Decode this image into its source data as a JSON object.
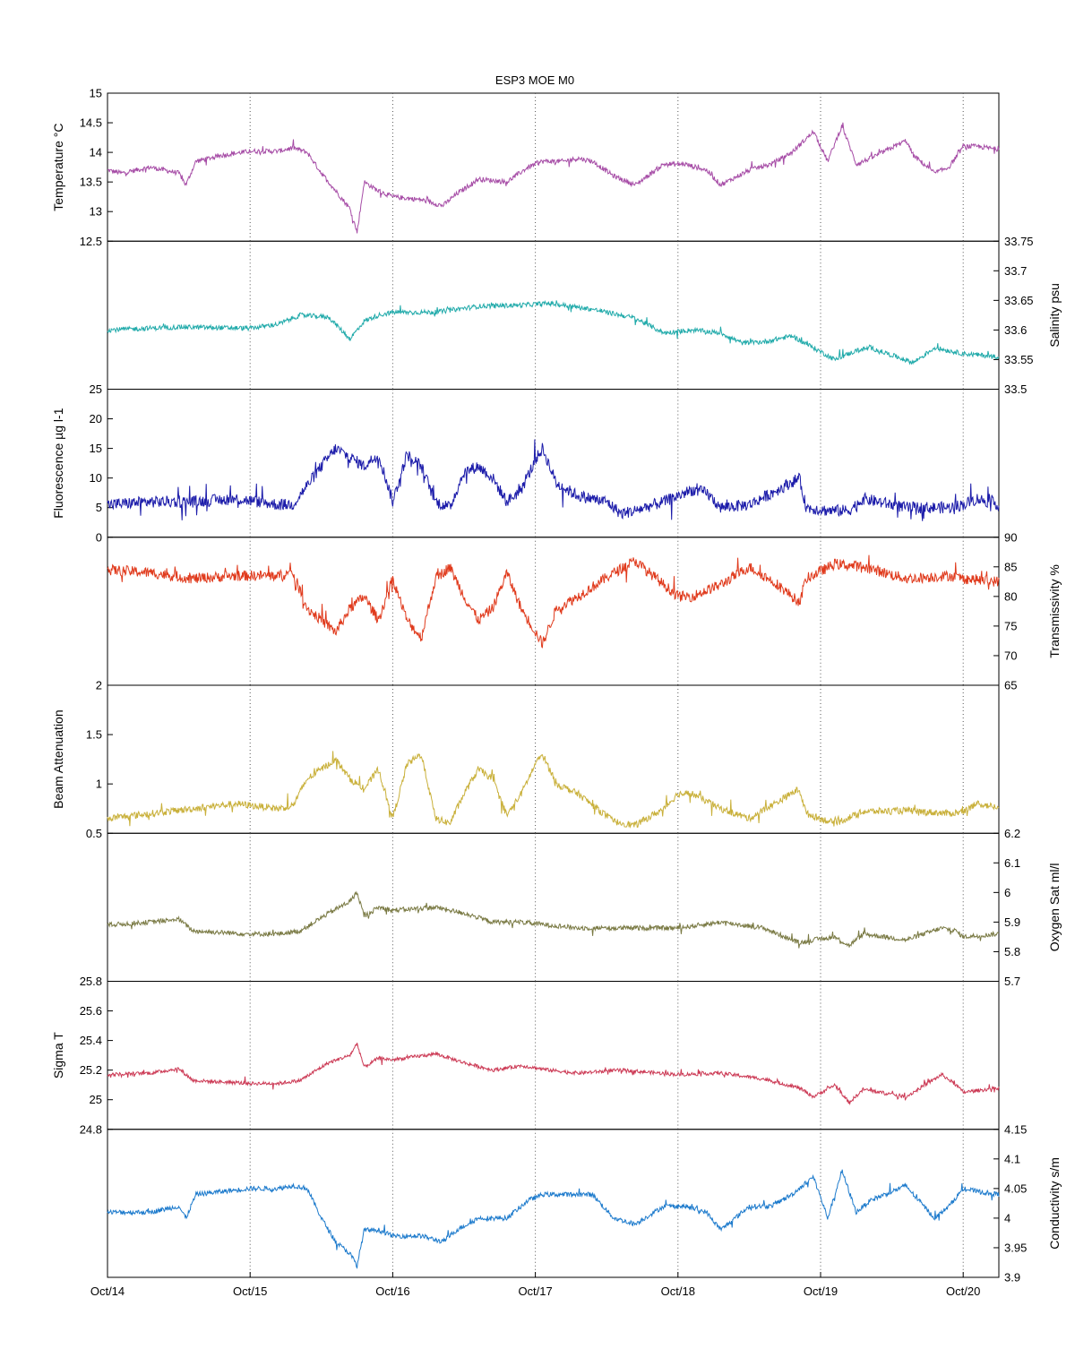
{
  "chart_data": {
    "type": "line",
    "title": "ESP3 MOE   M0",
    "x_ticks": [
      "Oct/14",
      "Oct/15",
      "Oct/16",
      "Oct/17",
      "Oct/18",
      "Oct/19",
      "Oct/20"
    ],
    "x_range_days": [
      0,
      6.25
    ],
    "x_grid": "vertical dotted at each day",
    "panels": [
      {
        "name": "temperature",
        "ylabel": "Temperature °C",
        "axis_side": "left",
        "color": "#a64ca6",
        "ylim": [
          12.5,
          15
        ],
        "yticks": [
          12.5,
          13,
          13.5,
          14,
          14.5,
          15
        ],
        "ytick_labels": [
          "12.5",
          "13",
          "13.5",
          "14",
          "14.5",
          "15"
        ],
        "noise": 0.04,
        "x": [
          0,
          0.1,
          0.3,
          0.5,
          0.55,
          0.62,
          0.8,
          1.0,
          1.2,
          1.3,
          1.4,
          1.5,
          1.6,
          1.7,
          1.75,
          1.8,
          1.9,
          2.0,
          2.2,
          2.35,
          2.45,
          2.6,
          2.8,
          2.95,
          3.05,
          3.2,
          3.3,
          3.4,
          3.55,
          3.7,
          3.9,
          4.05,
          4.2,
          4.3,
          4.5,
          4.65,
          4.8,
          4.95,
          5.05,
          5.15,
          5.25,
          5.35,
          5.6,
          5.65,
          5.8,
          5.9,
          6.0,
          6.1,
          6.25
        ],
        "y": [
          13.7,
          13.65,
          13.75,
          13.65,
          13.45,
          13.85,
          13.95,
          14.02,
          14.02,
          14.08,
          14.0,
          13.65,
          13.35,
          13.05,
          12.65,
          13.5,
          13.35,
          13.25,
          13.2,
          13.1,
          13.3,
          13.55,
          13.5,
          13.75,
          13.85,
          13.85,
          13.9,
          13.85,
          13.6,
          13.45,
          13.8,
          13.8,
          13.7,
          13.45,
          13.7,
          13.8,
          14.0,
          14.35,
          13.85,
          14.45,
          13.8,
          13.9,
          14.2,
          13.95,
          13.65,
          13.75,
          14.1,
          14.1,
          14.05
        ]
      },
      {
        "name": "salinity",
        "ylabel": "Salinity psu",
        "axis_side": "right",
        "color": "#20aaaa",
        "ylim": [
          33.5,
          33.75
        ],
        "yticks": [
          33.5,
          33.55,
          33.6,
          33.65,
          33.7,
          33.75
        ],
        "ytick_labels": [
          "33.5",
          "33.55",
          "33.6",
          "33.65",
          "33.7",
          "33.75"
        ],
        "noise": 0.004,
        "x": [
          0,
          0.5,
          1.0,
          1.2,
          1.35,
          1.55,
          1.7,
          1.8,
          1.9,
          2.0,
          2.3,
          2.6,
          2.9,
          3.1,
          3.4,
          3.7,
          3.9,
          4.1,
          4.3,
          4.45,
          4.6,
          4.8,
          4.95,
          5.1,
          5.25,
          5.35,
          5.65,
          5.8,
          6.0,
          6.25
        ],
        "y": [
          33.6,
          33.605,
          33.603,
          33.61,
          33.625,
          33.622,
          33.585,
          33.615,
          33.625,
          33.63,
          33.63,
          33.64,
          33.642,
          33.645,
          33.635,
          33.62,
          33.595,
          33.6,
          33.595,
          33.578,
          33.58,
          33.59,
          33.57,
          33.55,
          33.565,
          33.57,
          33.545,
          33.57,
          33.56,
          33.555
        ]
      },
      {
        "name": "fluorescence",
        "ylabel": "Fluorescence µg l-1",
        "axis_side": "left",
        "color": "#1c1caa",
        "ylim": [
          0,
          25
        ],
        "yticks": [
          0,
          5,
          10,
          15,
          20,
          25
        ],
        "ytick_labels": [
          "0",
          "5",
          "10",
          "15",
          "20",
          "25"
        ],
        "noise": 1.0,
        "x": [
          0,
          0.3,
          0.6,
          0.9,
          1.2,
          1.3,
          1.5,
          1.6,
          1.8,
          1.9,
          2.0,
          2.1,
          2.2,
          2.3,
          2.4,
          2.5,
          2.6,
          2.7,
          2.8,
          2.9,
          3.0,
          3.05,
          3.15,
          3.3,
          3.5,
          3.6,
          3.7,
          3.9,
          4.1,
          4.2,
          4.3,
          4.5,
          4.7,
          4.85,
          4.9,
          5.05,
          5.2,
          5.3,
          5.6,
          5.9,
          6.0,
          6.1,
          6.25
        ],
        "y": [
          5.5,
          6.0,
          6.0,
          6.5,
          5.5,
          5.5,
          12,
          15,
          12,
          14,
          6,
          14,
          12,
          6,
          5,
          11,
          12,
          10,
          6,
          8,
          13,
          15,
          9,
          7,
          6,
          4,
          4.5,
          6,
          8,
          7.5,
          5,
          5.5,
          8,
          10,
          5,
          4.5,
          4.5,
          6.5,
          5,
          5,
          5.5,
          6.5,
          5.5
        ]
      },
      {
        "name": "transmissivity",
        "ylabel": "Transmissivity %",
        "axis_side": "right",
        "color": "#e03a1c",
        "ylim": [
          65,
          90
        ],
        "yticks": [
          65,
          70,
          75,
          80,
          85,
          90
        ],
        "ytick_labels": [
          "65",
          "70",
          "75",
          "80",
          "85",
          "90"
        ],
        "noise": 0.9,
        "x": [
          0,
          0.3,
          0.6,
          0.9,
          1.2,
          1.3,
          1.4,
          1.5,
          1.6,
          1.7,
          1.8,
          1.9,
          2.0,
          2.1,
          2.2,
          2.3,
          2.4,
          2.5,
          2.6,
          2.7,
          2.8,
          2.9,
          3.0,
          3.05,
          3.15,
          3.3,
          3.55,
          3.7,
          3.9,
          4.0,
          4.1,
          4.3,
          4.5,
          4.7,
          4.85,
          4.9,
          5.1,
          5.3,
          5.6,
          5.9,
          6.0,
          6.25
        ],
        "y": [
          84.5,
          84,
          83,
          83.5,
          83.5,
          84,
          78,
          76,
          74,
          78,
          80,
          76,
          83,
          76,
          73,
          83,
          85,
          80,
          76,
          78,
          84,
          78,
          74,
          72,
          78,
          80,
          84,
          86,
          82,
          80,
          80,
          82,
          85,
          82,
          79,
          83,
          85.5,
          85,
          83,
          83.5,
          83,
          82.5
        ]
      },
      {
        "name": "beam_attenuation",
        "ylabel": "Beam Attenuation",
        "axis_side": "left",
        "color": "#c9b03a",
        "ylim": [
          0.5,
          2
        ],
        "yticks": [
          0.5,
          1,
          1.5,
          2
        ],
        "ytick_labels": [
          "0.5",
          "1",
          "1.5",
          "2"
        ],
        "noise": 0.035,
        "x": [
          0,
          0.3,
          0.6,
          0.9,
          1.2,
          1.3,
          1.4,
          1.5,
          1.6,
          1.7,
          1.8,
          1.9,
          2.0,
          2.1,
          2.2,
          2.3,
          2.4,
          2.5,
          2.6,
          2.7,
          2.8,
          2.9,
          3.0,
          3.05,
          3.15,
          3.3,
          3.55,
          3.7,
          3.9,
          4.0,
          4.1,
          4.3,
          4.5,
          4.7,
          4.85,
          4.9,
          5.1,
          5.3,
          5.6,
          5.9,
          6.0,
          6.1,
          6.25
        ],
        "y": [
          0.65,
          0.7,
          0.75,
          0.8,
          0.75,
          0.78,
          1.05,
          1.15,
          1.25,
          1.05,
          0.95,
          1.15,
          0.65,
          1.2,
          1.3,
          0.65,
          0.6,
          0.9,
          1.15,
          1.05,
          0.68,
          0.9,
          1.2,
          1.3,
          1.0,
          0.9,
          0.62,
          0.58,
          0.75,
          0.9,
          0.9,
          0.75,
          0.65,
          0.82,
          0.95,
          0.7,
          0.6,
          0.72,
          0.73,
          0.7,
          0.72,
          0.8,
          0.76
        ]
      },
      {
        "name": "oxygen_sat",
        "ylabel": "Oxygen Sat ml/l",
        "axis_side": "right",
        "color": "#7a7a44",
        "ylim": [
          5.7,
          6.2
        ],
        "yticks": [
          5.7,
          5.8,
          5.9,
          6.0,
          6.1,
          6.2
        ],
        "ytick_labels": [
          "5.7",
          "5.8",
          "5.9",
          "6",
          "6.1",
          "6.2"
        ],
        "noise": 0.008,
        "x": [
          0,
          0.3,
          0.5,
          0.6,
          1.0,
          1.2,
          1.35,
          1.55,
          1.7,
          1.75,
          1.8,
          1.9,
          2.0,
          2.3,
          2.5,
          2.7,
          2.9,
          3.1,
          3.3,
          3.6,
          4.0,
          4.3,
          4.6,
          4.85,
          4.95,
          5.1,
          5.2,
          5.3,
          5.6,
          5.85,
          5.95,
          6.0,
          6.25
        ],
        "y": [
          5.89,
          5.9,
          5.91,
          5.87,
          5.86,
          5.86,
          5.87,
          5.93,
          5.97,
          6.0,
          5.92,
          5.95,
          5.94,
          5.95,
          5.93,
          5.9,
          5.9,
          5.89,
          5.88,
          5.88,
          5.88,
          5.9,
          5.88,
          5.83,
          5.84,
          5.85,
          5.82,
          5.86,
          5.84,
          5.88,
          5.87,
          5.85,
          5.86
        ]
      },
      {
        "name": "sigma_t",
        "ylabel": "Sigma T",
        "axis_side": "left",
        "color": "#cc3a55",
        "ylim": [
          24.8,
          25.8
        ],
        "yticks": [
          24.8,
          25,
          25.2,
          25.4,
          25.6,
          25.8
        ],
        "ytick_labels": [
          "24.8",
          "25",
          "25.2",
          "25.4",
          "25.6",
          "25.8"
        ],
        "noise": 0.012,
        "x": [
          0,
          0.3,
          0.5,
          0.6,
          1.0,
          1.2,
          1.35,
          1.55,
          1.7,
          1.75,
          1.8,
          1.9,
          2.0,
          2.3,
          2.5,
          2.7,
          2.9,
          3.1,
          3.3,
          3.6,
          4.0,
          4.3,
          4.6,
          4.85,
          4.95,
          5.1,
          5.2,
          5.3,
          5.6,
          5.85,
          5.95,
          6.0,
          6.25
        ],
        "y": [
          25.17,
          25.18,
          25.21,
          25.13,
          25.11,
          25.11,
          25.13,
          25.25,
          25.3,
          25.38,
          25.22,
          25.28,
          25.27,
          25.31,
          25.25,
          25.2,
          25.23,
          25.2,
          25.18,
          25.2,
          25.17,
          25.18,
          25.14,
          25.08,
          25.02,
          25.1,
          24.98,
          25.07,
          25.02,
          25.17,
          25.1,
          25.05,
          25.08
        ]
      },
      {
        "name": "conductivity",
        "ylabel": "Conductivity s/m",
        "axis_side": "right",
        "color": "#1c7acc",
        "ylim": [
          3.9,
          4.15
        ],
        "yticks": [
          3.9,
          3.95,
          4,
          4.05,
          4.1,
          4.15
        ],
        "ytick_labels": [
          "3.9",
          "3.95",
          "4",
          "4.05",
          "4.1",
          "4.15"
        ],
        "noise": 0.004,
        "x": [
          0,
          0.3,
          0.5,
          0.55,
          0.62,
          0.8,
          1.0,
          1.2,
          1.3,
          1.4,
          1.5,
          1.6,
          1.7,
          1.75,
          1.8,
          1.9,
          2.0,
          2.2,
          2.35,
          2.45,
          2.6,
          2.8,
          2.95,
          3.05,
          3.2,
          3.4,
          3.55,
          3.7,
          3.9,
          4.05,
          4.2,
          4.3,
          4.5,
          4.65,
          4.8,
          4.95,
          5.05,
          5.15,
          5.25,
          5.35,
          5.6,
          5.65,
          5.8,
          5.9,
          6.0,
          6.1,
          6.25
        ],
        "y": [
          4.01,
          4.01,
          4.02,
          4.0,
          4.04,
          4.045,
          4.05,
          4.05,
          4.055,
          4.05,
          4.0,
          3.96,
          3.94,
          3.92,
          3.98,
          3.98,
          3.97,
          3.97,
          3.96,
          3.98,
          4.0,
          4.0,
          4.03,
          4.04,
          4.04,
          4.04,
          4.0,
          3.99,
          4.02,
          4.02,
          4.01,
          3.98,
          4.02,
          4.02,
          4.04,
          4.07,
          4.0,
          4.08,
          4.01,
          4.03,
          4.055,
          4.04,
          4.0,
          4.02,
          4.05,
          4.045,
          4.04
        ]
      }
    ]
  }
}
